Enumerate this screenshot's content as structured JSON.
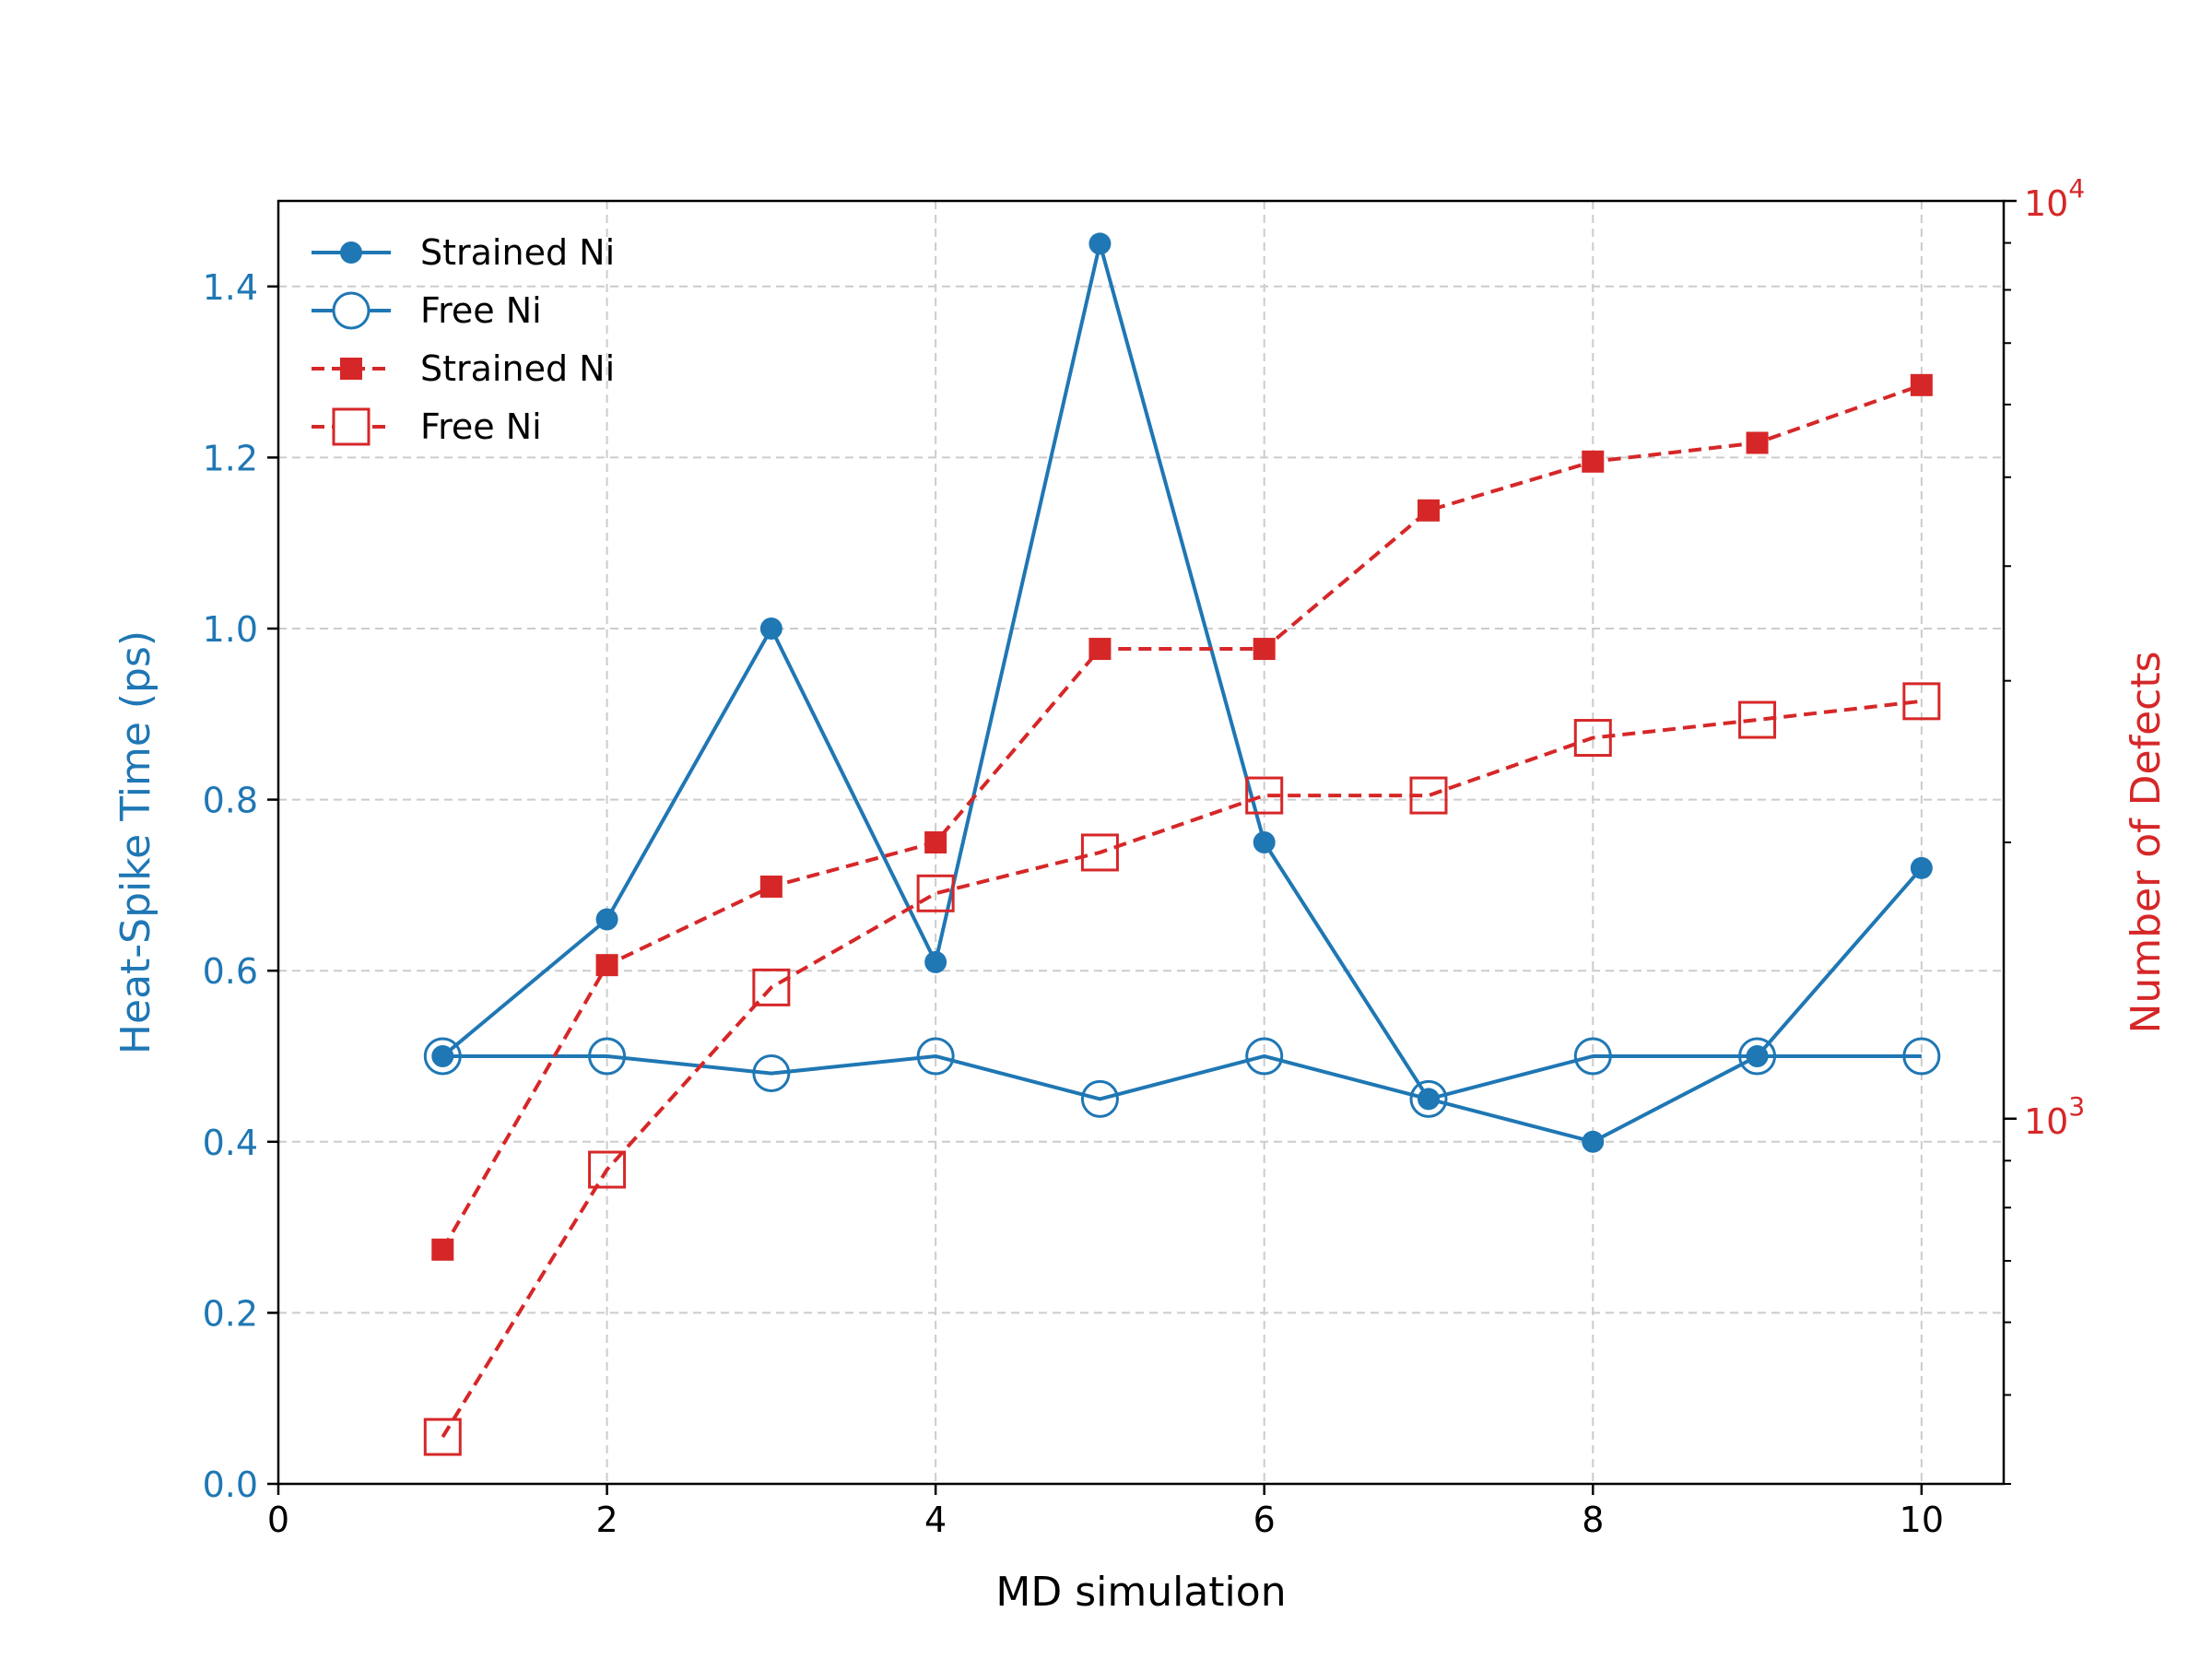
{
  "colors": {
    "left_axis": "#1f77b4",
    "right_axis": "#d62728",
    "axis": "#000000",
    "grid": "#cccccc"
  },
  "chart_data": {
    "type": "line",
    "xlabel": "MD simulation",
    "ylabel_left": "Heat-Spike Time (ps)",
    "ylabel_right": "Number of Defects",
    "xlim": [
      0,
      10.5
    ],
    "ylim_left": [
      0,
      1.5
    ],
    "ylim_right_log": [
      400,
      10000
    ],
    "x_ticks": [
      "0",
      "2",
      "4",
      "6",
      "8",
      "10"
    ],
    "x_tick_values": [
      0,
      2,
      4,
      6,
      8,
      10
    ],
    "y_left_ticks": [
      "0.0",
      "0.2",
      "0.4",
      "0.6",
      "0.8",
      "1.0",
      "1.2",
      "1.4"
    ],
    "y_left_tick_values": [
      0,
      0.2,
      0.4,
      0.6,
      0.8,
      1.0,
      1.2,
      1.4
    ],
    "y_right_ticks": [
      {
        "base": "10",
        "exp": "3",
        "value": 1000
      },
      {
        "base": "10",
        "exp": "4",
        "value": 10000
      }
    ],
    "grid": true,
    "legend_position": "upper-left",
    "x": [
      1,
      2,
      3,
      4,
      5,
      6,
      7,
      8,
      9,
      10
    ],
    "series": [
      {
        "name": "Strained Ni",
        "axis": "left",
        "marker": "filled-circle",
        "line": "solid",
        "color": "#1f77b4",
        "values": [
          0.5,
          0.66,
          1.0,
          0.61,
          1.45,
          0.75,
          0.45,
          0.4,
          0.5,
          0.72
        ]
      },
      {
        "name": "Free Ni",
        "axis": "left",
        "marker": "open-circle",
        "line": "solid",
        "color": "#1f77b4",
        "values": [
          0.5,
          0.5,
          0.48,
          0.5,
          0.45,
          0.5,
          0.45,
          0.5,
          0.5,
          0.5
        ]
      },
      {
        "name": "Strained Ni",
        "axis": "right",
        "marker": "filled-square",
        "line": "dashed",
        "color": "#d62728",
        "values": [
          720,
          1470,
          1790,
          2000,
          3250,
          3250,
          4600,
          5200,
          5450,
          6300
        ]
      },
      {
        "name": "Free Ni",
        "axis": "right",
        "marker": "open-square",
        "line": "dashed",
        "color": "#d62728",
        "values": [
          450,
          880,
          1390,
          1760,
          1950,
          2250,
          2250,
          2600,
          2720,
          2850
        ]
      }
    ]
  }
}
